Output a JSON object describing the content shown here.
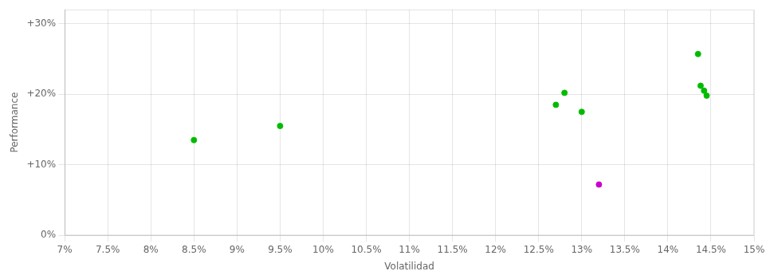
{
  "chart_data": {
    "type": "scatter",
    "xlabel": "Volatilidad",
    "ylabel": "Performance",
    "series": [
      {
        "color": "#00bb00",
        "x": [
          0.085,
          0.095,
          0.127,
          0.13,
          0.128,
          0.1435,
          0.1438,
          0.1442,
          0.1445
        ],
        "values": [
          0.135,
          0.155,
          0.185,
          0.175,
          0.202,
          0.257,
          0.212,
          0.205,
          0.198
        ]
      },
      {
        "color": "#cc00cc",
        "x": [
          0.132
        ],
        "values": [
          0.072
        ]
      }
    ],
    "xlim": [
      0.07,
      0.15
    ],
    "ylim": [
      0.0,
      0.32
    ],
    "xticks": [
      {
        "value": 0.07,
        "label": "7%"
      },
      {
        "value": 0.075,
        "label": "7.5%"
      },
      {
        "value": 0.08,
        "label": "8%"
      },
      {
        "value": 0.085,
        "label": "8.5%"
      },
      {
        "value": 0.09,
        "label": "9%"
      },
      {
        "value": 0.095,
        "label": "9.5%"
      },
      {
        "value": 0.1,
        "label": "10%"
      },
      {
        "value": 0.105,
        "label": "10.5%"
      },
      {
        "value": 0.11,
        "label": "11%"
      },
      {
        "value": 0.115,
        "label": "11.5%"
      },
      {
        "value": 0.12,
        "label": "12%"
      },
      {
        "value": 0.125,
        "label": "12.5%"
      },
      {
        "value": 0.13,
        "label": "13%"
      },
      {
        "value": 0.135,
        "label": "13.5%"
      },
      {
        "value": 0.14,
        "label": "14%"
      },
      {
        "value": 0.145,
        "label": "14.5%"
      },
      {
        "value": 0.15,
        "label": "15%"
      }
    ],
    "yticks": [
      {
        "value": 0.0,
        "label": "0%"
      },
      {
        "value": 0.1,
        "label": "+10%"
      },
      {
        "value": 0.2,
        "label": "+20%"
      },
      {
        "value": 0.3,
        "label": "+30%"
      }
    ],
    "grid": true
  }
}
